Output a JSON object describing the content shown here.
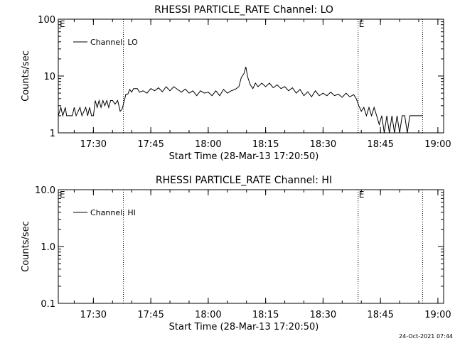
{
  "footer_timestamp": "24-Oct-2021 07:44",
  "chart_data": [
    {
      "type": "line",
      "title": "RHESSI PARTICLE_RATE Channel: LO",
      "xlabel": "Start Time (28-Mar-13 17:20:50)",
      "ylabel": "Counts/sec",
      "yscale": "log",
      "ylim": [
        1,
        100
      ],
      "xlim": [
        "17:20:50",
        "19:01:30"
      ],
      "x_tick_labels": [
        "17:30",
        "17:45",
        "18:00",
        "18:15",
        "18:30",
        "18:45",
        "19:00"
      ],
      "y_tick_labels": [
        "1",
        "10",
        "100"
      ],
      "markers": [
        {
          "time": "17:37:50",
          "label": ""
        },
        {
          "time": "18:39:10",
          "label": "E"
        },
        {
          "time": "18:56:00",
          "label": ""
        }
      ],
      "left_marker_label": "E",
      "legend": {
        "position": "top-left",
        "label": "Channel: LO"
      },
      "series": [
        {
          "name": "Channel: LO",
          "points": [
            [
              "17:20:50",
              2
            ],
            [
              "17:21:30",
              2.8
            ],
            [
              "17:22:00",
              2
            ],
            [
              "17:22:40",
              2.8
            ],
            [
              "17:23:00",
              2
            ],
            [
              "17:24:30",
              2
            ],
            [
              "17:25:00",
              2.8
            ],
            [
              "17:25:30",
              2
            ],
            [
              "17:26:30",
              2.8
            ],
            [
              "17:27:00",
              2
            ],
            [
              "17:28:00",
              2.8
            ],
            [
              "17:28:30",
              2
            ],
            [
              "17:29:00",
              2.8
            ],
            [
              "17:29:30",
              2
            ],
            [
              "17:30:00",
              2
            ],
            [
              "17:30:30",
              3.7
            ],
            [
              "17:31:00",
              2.8
            ],
            [
              "17:31:30",
              3.7
            ],
            [
              "17:32:00",
              2.8
            ],
            [
              "17:32:30",
              3.7
            ],
            [
              "17:33:00",
              3
            ],
            [
              "17:33:30",
              3.7
            ],
            [
              "17:34:00",
              2.8
            ],
            [
              "17:34:30",
              3.7
            ],
            [
              "17:35:00",
              3.7
            ],
            [
              "17:35:40",
              3.2
            ],
            [
              "17:36:20",
              3.7
            ],
            [
              "17:37:00",
              2.4
            ],
            [
              "17:37:30",
              2.6
            ],
            [
              "17:38:00",
              3.5
            ],
            [
              "17:38:30",
              4.8
            ],
            [
              "17:39:00",
              4.8
            ],
            [
              "17:39:30",
              5.8
            ],
            [
              "17:40:00",
              5.2
            ],
            [
              "17:40:30",
              6
            ],
            [
              "17:41:30",
              6
            ],
            [
              "17:42:00",
              5.2
            ],
            [
              "17:43:00",
              5.5
            ],
            [
              "17:44:00",
              5
            ],
            [
              "17:45:00",
              6
            ],
            [
              "17:46:00",
              5.5
            ],
            [
              "17:47:00",
              6.2
            ],
            [
              "17:48:00",
              5.3
            ],
            [
              "17:49:00",
              6.5
            ],
            [
              "17:50:00",
              5.5
            ],
            [
              "17:51:00",
              6.5
            ],
            [
              "17:52:00",
              5.8
            ],
            [
              "17:53:00",
              5.2
            ],
            [
              "17:54:00",
              5.9
            ],
            [
              "17:55:00",
              5
            ],
            [
              "17:56:00",
              5.5
            ],
            [
              "17:57:00",
              4.5
            ],
            [
              "17:58:00",
              5.5
            ],
            [
              "17:59:00",
              5
            ],
            [
              "18:00:00",
              5.2
            ],
            [
              "18:01:00",
              4.5
            ],
            [
              "18:02:00",
              5.5
            ],
            [
              "18:03:00",
              4.5
            ],
            [
              "18:04:00",
              5.8
            ],
            [
              "18:05:00",
              5
            ],
            [
              "18:06:00",
              5.5
            ],
            [
              "18:07:00",
              5.8
            ],
            [
              "18:08:00",
              6.5
            ],
            [
              "18:08:40",
              9.5
            ],
            [
              "18:09:20",
              11
            ],
            [
              "18:09:50",
              14.5
            ],
            [
              "18:10:20",
              9.5
            ],
            [
              "18:11:00",
              7
            ],
            [
              "18:11:40",
              6
            ],
            [
              "18:12:20",
              7.5
            ],
            [
              "18:13:00",
              6.5
            ],
            [
              "18:14:00",
              7.5
            ],
            [
              "18:15:00",
              6.5
            ],
            [
              "18:16:00",
              7.5
            ],
            [
              "18:17:00",
              6.2
            ],
            [
              "18:18:00",
              7
            ],
            [
              "18:19:00",
              6
            ],
            [
              "18:20:00",
              6.5
            ],
            [
              "18:21:00",
              5.5
            ],
            [
              "18:22:00",
              6.2
            ],
            [
              "18:23:00",
              5
            ],
            [
              "18:24:00",
              5.8
            ],
            [
              "18:25:00",
              4.5
            ],
            [
              "18:26:00",
              5.3
            ],
            [
              "18:27:00",
              4.3
            ],
            [
              "18:28:00",
              5.5
            ],
            [
              "18:29:00",
              4.5
            ],
            [
              "18:30:00",
              5
            ],
            [
              "18:31:00",
              4.5
            ],
            [
              "18:32:00",
              5.2
            ],
            [
              "18:33:00",
              4.5
            ],
            [
              "18:34:00",
              4.8
            ],
            [
              "18:35:00",
              4.2
            ],
            [
              "18:36:00",
              5
            ],
            [
              "18:37:00",
              4.3
            ],
            [
              "18:38:00",
              4.7
            ],
            [
              "18:38:40",
              4
            ],
            [
              "18:39:20",
              3
            ],
            [
              "18:40:00",
              2.4
            ],
            [
              "18:40:40",
              2.8
            ],
            [
              "18:41:20",
              2
            ],
            [
              "18:42:00",
              2.8
            ],
            [
              "18:42:40",
              2
            ],
            [
              "18:43:20",
              2.8
            ],
            [
              "18:44:00",
              2
            ],
            [
              "18:44:40",
              1.4
            ],
            [
              "18:45:20",
              2
            ],
            [
              "18:46:00",
              1
            ],
            [
              "18:46:40",
              2
            ],
            [
              "18:47:20",
              1
            ],
            [
              "18:48:00",
              2
            ],
            [
              "18:48:40",
              1
            ],
            [
              "18:49:20",
              2
            ],
            [
              "18:50:00",
              1
            ],
            [
              "18:50:40",
              2
            ],
            [
              "18:51:20",
              2
            ],
            [
              "18:52:00",
              1
            ],
            [
              "18:52:40",
              2
            ],
            [
              "18:56:00",
              2
            ]
          ]
        }
      ]
    },
    {
      "type": "line",
      "title": "RHESSI PARTICLE_RATE Channel: HI",
      "xlabel": "Start Time (28-Mar-13 17:20:50)",
      "ylabel": "Counts/sec",
      "yscale": "log",
      "ylim": [
        0.1,
        10
      ],
      "xlim": [
        "17:20:50",
        "19:01:30"
      ],
      "x_tick_labels": [
        "17:30",
        "17:45",
        "18:00",
        "18:15",
        "18:30",
        "18:45",
        "19:00"
      ],
      "y_tick_labels": [
        "0.1",
        "1.0",
        "10.0"
      ],
      "markers": [
        {
          "time": "17:37:50",
          "label": ""
        },
        {
          "time": "18:39:10",
          "label": "E"
        },
        {
          "time": "18:56:00",
          "label": ""
        }
      ],
      "left_marker_label": "E",
      "legend": {
        "position": "top-left",
        "label": "Channel: HI"
      },
      "series": [
        {
          "name": "Channel: HI",
          "points": []
        }
      ]
    }
  ]
}
